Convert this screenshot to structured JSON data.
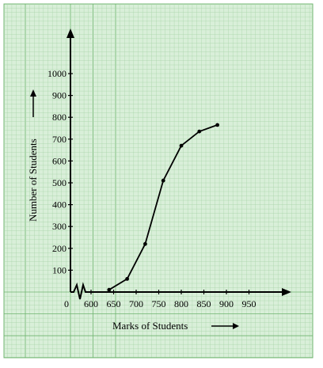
{
  "colors": {
    "paper": "#d9efd9",
    "grid_minor": "#a8d4a8",
    "grid_major": "#6fb46f",
    "ink": "#000000"
  },
  "chart_data": {
    "type": "line",
    "title": "",
    "xlabel": "Marks of Students",
    "ylabel": "Number of Students",
    "x_ticks": [
      "0",
      "600",
      "650",
      "700",
      "750",
      "800",
      "850",
      "900",
      "950"
    ],
    "y_ticks": [
      "100",
      "200",
      "300",
      "400",
      "500",
      "600",
      "700",
      "800",
      "900",
      "1000"
    ],
    "xlim": [
      600,
      1000
    ],
    "ylim": [
      0,
      1000
    ],
    "axis_break_x": true,
    "grid": true,
    "series": [
      {
        "x": [
          640,
          680,
          720,
          760,
          800,
          840,
          880
        ],
        "y": [
          10,
          60,
          220,
          510,
          670,
          735,
          765
        ]
      }
    ]
  }
}
